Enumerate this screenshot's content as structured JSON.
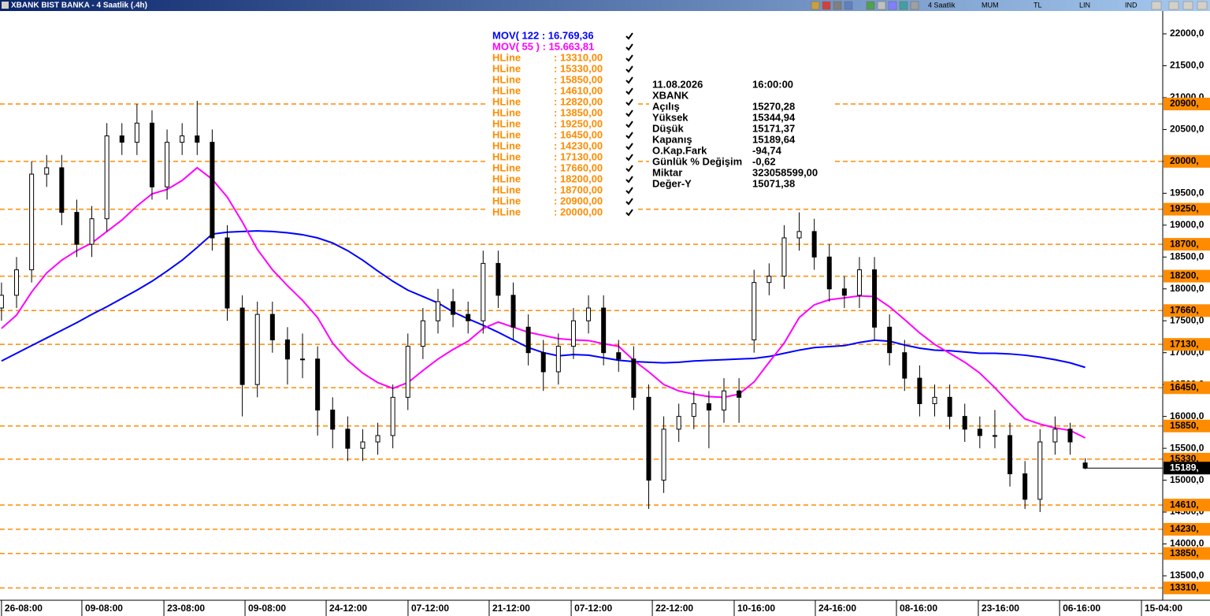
{
  "title_bar": {
    "title": "XBANK BIST BANKA - 4 Saatlik (.4h)",
    "toolbar": [
      "4 Saatlik",
      "MUM",
      "TL",
      "LIN",
      "IND"
    ]
  },
  "chart_data": {
    "type": "candlestick",
    "color": "#000000",
    "x": [
      0,
      1,
      2,
      3,
      4,
      5,
      6,
      7,
      8,
      9,
      10,
      11,
      12,
      13,
      14,
      15,
      16,
      17,
      18,
      19,
      20,
      21,
      22,
      23,
      24,
      25,
      26,
      27,
      28,
      29,
      30,
      31,
      32,
      33,
      34,
      35,
      36,
      37,
      38,
      39,
      40,
      41,
      42,
      43,
      44,
      45,
      46,
      47,
      48,
      49,
      50,
      51,
      52,
      53,
      54,
      55,
      56,
      57,
      58,
      59,
      60,
      61,
      62,
      63,
      64,
      65,
      66,
      67,
      68,
      69,
      70,
      71,
      72
    ],
    "open": [
      17700,
      17900,
      18300,
      19800,
      19900,
      19200,
      18700,
      19100,
      20400,
      20300,
      20600,
      19600,
      20300,
      20400,
      20300,
      18800,
      17700,
      16500,
      17600,
      17200,
      16900,
      16900,
      16100,
      15800,
      15500,
      15600,
      15700,
      16300,
      17100,
      17500,
      17800,
      17600,
      17500,
      18400,
      17900,
      17400,
      17000,
      16700,
      17100,
      17500,
      17700,
      17000,
      16900,
      16300,
      15000,
      15800,
      16000,
      16200,
      16100,
      16400,
      17200,
      18100,
      18200,
      18800,
      18900,
      18500,
      18000,
      17900,
      18300,
      17400,
      17000,
      16600,
      16200,
      16300,
      16000,
      15800,
      15700,
      15700,
      15100,
      14700,
      15600,
      15800,
      15270.28
    ],
    "high": [
      18100,
      18500,
      20000,
      20100,
      20100,
      19400,
      19300,
      20600,
      20600,
      20900,
      20800,
      20500,
      20600,
      20950,
      20500,
      19000,
      17900,
      17800,
      17800,
      17400,
      17300,
      17100,
      16300,
      16000,
      15800,
      15900,
      16500,
      17300,
      17700,
      18000,
      18000,
      17800,
      18600,
      18600,
      18100,
      17600,
      17200,
      17300,
      17700,
      17900,
      17900,
      17200,
      17100,
      16500,
      16000,
      16200,
      16400,
      16400,
      16600,
      16600,
      18300,
      18400,
      19000,
      19200,
      19100,
      18700,
      18200,
      18500,
      18500,
      17600,
      17200,
      16800,
      16500,
      16500,
      16200,
      16000,
      16100,
      15900,
      15300,
      15800,
      16000,
      15900,
      15344.94
    ],
    "low": [
      17500,
      17700,
      18100,
      19600,
      19000,
      18500,
      18500,
      18900,
      20100,
      20100,
      19400,
      19400,
      20100,
      20100,
      18600,
      17500,
      16000,
      16300,
      17000,
      16500,
      16600,
      15700,
      15500,
      15300,
      15300,
      15400,
      15500,
      16100,
      16900,
      17300,
      17400,
      17300,
      17300,
      17700,
      17200,
      16800,
      16400,
      16500,
      16900,
      17300,
      16800,
      16700,
      16100,
      14550,
      14800,
      15600,
      15800,
      15500,
      15900,
      15900,
      17000,
      17900,
      18000,
      18600,
      18300,
      17800,
      17700,
      17700,
      17200,
      16800,
      16400,
      16000,
      16000,
      15800,
      15600,
      15500,
      15500,
      14900,
      14550,
      14500,
      15400,
      15400,
      15171.37
    ],
    "close": [
      17900,
      18300,
      19800,
      19900,
      19200,
      18700,
      19100,
      20400,
      20300,
      20600,
      19600,
      20300,
      20400,
      20300,
      18800,
      17700,
      16500,
      17600,
      17200,
      16900,
      16900,
      16100,
      15800,
      15500,
      15600,
      15700,
      16300,
      17100,
      17500,
      17800,
      17600,
      17500,
      18400,
      17900,
      17400,
      17000,
      16700,
      17100,
      17500,
      17700,
      17000,
      16900,
      16300,
      15000,
      15800,
      16000,
      16200,
      16100,
      16400,
      16300,
      18100,
      18200,
      18800,
      18900,
      18500,
      18000,
      17900,
      18300,
      17400,
      17000,
      16600,
      16200,
      16300,
      16000,
      15800,
      15700,
      15700,
      15100,
      14700,
      15600,
      15800,
      15600,
      15189.64
    ],
    "series": [
      {
        "name": "MOV( 122 : 16.769,36",
        "color": "#0000ff",
        "values": [
          16870,
          16990,
          17110,
          17230,
          17350,
          17470,
          17600,
          17720,
          17850,
          17980,
          18120,
          18280,
          18450,
          18650,
          18860,
          18890,
          18900,
          18910,
          18900,
          18880,
          18850,
          18800,
          18720,
          18600,
          18450,
          18280,
          18120,
          17980,
          17880,
          17780,
          17640,
          17530,
          17430,
          17320,
          17200,
          17080,
          17000,
          16950,
          16970,
          16960,
          16920,
          16880,
          16860,
          16850,
          16840,
          16850,
          16870,
          16880,
          16890,
          16900,
          16910,
          16940,
          16990,
          17040,
          17080,
          17095,
          17110,
          17160,
          17195,
          17180,
          17120,
          17070,
          17040,
          17030,
          17010,
          16990,
          16990,
          16980,
          16960,
          16930,
          16890,
          16840,
          16769.36
        ]
      },
      {
        "name": "MOV( 55 ) : 15.663,81",
        "color": "#ff00ff",
        "values": [
          17380,
          17590,
          17950,
          18250,
          18450,
          18600,
          18720,
          18900,
          19080,
          19300,
          19490,
          19560,
          19700,
          19900,
          19720,
          19440,
          19050,
          18620,
          18300,
          18050,
          17820,
          17550,
          17150,
          16880,
          16680,
          16530,
          16440,
          16530,
          16720,
          16900,
          17050,
          17180,
          17380,
          17480,
          17400,
          17320,
          17270,
          17220,
          17200,
          17190,
          17140,
          17100,
          16880,
          16700,
          16500,
          16400,
          16350,
          16310,
          16300,
          16350,
          16540,
          16850,
          17150,
          17550,
          17750,
          17830,
          17860,
          17890,
          17880,
          17720,
          17520,
          17310,
          17130,
          16990,
          16850,
          16680,
          16450,
          16200,
          15960,
          15880,
          15820,
          15780,
          15663.81
        ]
      }
    ],
    "hline_color": "#ff8c00",
    "hlines": [
      {
        "name": "HLine",
        "value": 13310,
        "legend_label": ": 13310,00",
        "tag_label": "13310,"
      },
      {
        "name": "HLine",
        "value": 15330,
        "legend_label": ": 15330,00",
        "tag_label": "15330,"
      },
      {
        "name": "HLine",
        "value": 15850,
        "legend_label": ": 15850,00",
        "tag_label": "15850,"
      },
      {
        "name": "HLine",
        "value": 14610,
        "legend_label": ": 14610,00",
        "tag_label": "14610,"
      },
      {
        "name": "HLine",
        "value": 12820,
        "legend_label": ": 12820,00"
      },
      {
        "name": "HLine",
        "value": 13850,
        "legend_label": ": 13850,00",
        "tag_label": "13850,"
      },
      {
        "name": "HLine",
        "value": 19250,
        "legend_label": ": 19250,00",
        "tag_label": "19250,"
      },
      {
        "name": "HLine",
        "value": 16450,
        "legend_label": ": 16450,00",
        "tag_label": "16450,"
      },
      {
        "name": "HLine",
        "value": 14230,
        "legend_label": ": 14230,00",
        "tag_label": "14230,"
      },
      {
        "name": "HLine",
        "value": 17130,
        "legend_label": ": 17130,00",
        "tag_label": "17130,"
      },
      {
        "name": "HLine",
        "value": 17660,
        "legend_label": ": 17660,00",
        "tag_label": "17660,"
      },
      {
        "name": "HLine",
        "value": 18200,
        "legend_label": ": 18200,00",
        "tag_label": "18200,"
      },
      {
        "name": "HLine",
        "value": 18700,
        "legend_label": ": 18700,00",
        "tag_label": "18700,"
      },
      {
        "name": "HLine",
        "value": 20900,
        "legend_label": ": 20900,00",
        "tag_label": "20900,"
      },
      {
        "name": "HLine",
        "value": 20000,
        "legend_label": ": 20000,00",
        "tag_label": "20000,"
      }
    ],
    "last_price": {
      "value": 15189.64,
      "label": "15189,"
    },
    "info": {
      "date": "11.08.2026",
      "time": "16:00:00",
      "symbol": "XBANK",
      "rows": [
        [
          "Açılış",
          "15270,28"
        ],
        [
          "Yüksek",
          "15344,94"
        ],
        [
          "Düşük",
          "15171,37"
        ],
        [
          "Kapanış",
          "15189,64"
        ],
        [
          "O.Kap.Fark",
          "-94,74"
        ],
        [
          "Günlük % Değişim",
          "-0,62"
        ],
        [
          "Miktar",
          "323058599,00"
        ],
        [
          "Değer-Y",
          "15071,38"
        ]
      ]
    },
    "xlim": [
      -0.1,
      77.1
    ],
    "xticks": [
      {
        "value": 0,
        "label": "26-08:00"
      },
      {
        "value": 5.34,
        "label": "09-08:00"
      },
      {
        "value": 10.79,
        "label": "23-08:00"
      },
      {
        "value": 16.18,
        "label": "09-08:00"
      },
      {
        "value": 21.57,
        "label": "24-12:00"
      },
      {
        "value": 27.01,
        "label": "07-12:00"
      },
      {
        "value": 32.4,
        "label": "21-12:00"
      },
      {
        "value": 37.85,
        "label": "07-12:00"
      },
      {
        "value": 43.24,
        "label": "22-12:00"
      },
      {
        "value": 48.68,
        "label": "10-16:00"
      },
      {
        "value": 54.07,
        "label": "24-16:00"
      },
      {
        "value": 59.46,
        "label": "08-16:00"
      },
      {
        "value": 64.9,
        "label": "23-16:00"
      },
      {
        "value": 70.3,
        "label": "06-16:00"
      },
      {
        "value": 75.74,
        "label": "15-04:00"
      }
    ],
    "ylim": [
      13117,
      22358
    ],
    "yticks": [
      {
        "value": 22000,
        "label": "22000,0"
      },
      {
        "value": 21500,
        "label": "21500,0"
      },
      {
        "value": 21000,
        "label": "21000,0"
      },
      {
        "value": 20500,
        "label": "20500,0"
      },
      {
        "value": 20000,
        "label": "20000,0"
      },
      {
        "value": 19500,
        "label": "19500,0"
      },
      {
        "value": 19000,
        "label": "19000,0"
      },
      {
        "value": 18500,
        "label": "18500,0"
      },
      {
        "value": 18000,
        "label": "18000,0"
      },
      {
        "value": 17500,
        "label": "17500,0"
      },
      {
        "value": 17000,
        "label": "17000,0"
      },
      {
        "value": 16500,
        "label": "16500,0"
      },
      {
        "value": 16000,
        "label": "16000,0"
      },
      {
        "value": 15500,
        "label": "15500,0"
      },
      {
        "value": 15000,
        "label": "15000,0"
      },
      {
        "value": 14500,
        "label": "14500,0"
      },
      {
        "value": 14000,
        "label": "14000,0"
      },
      {
        "value": 13500,
        "label": "13500,0"
      }
    ]
  }
}
